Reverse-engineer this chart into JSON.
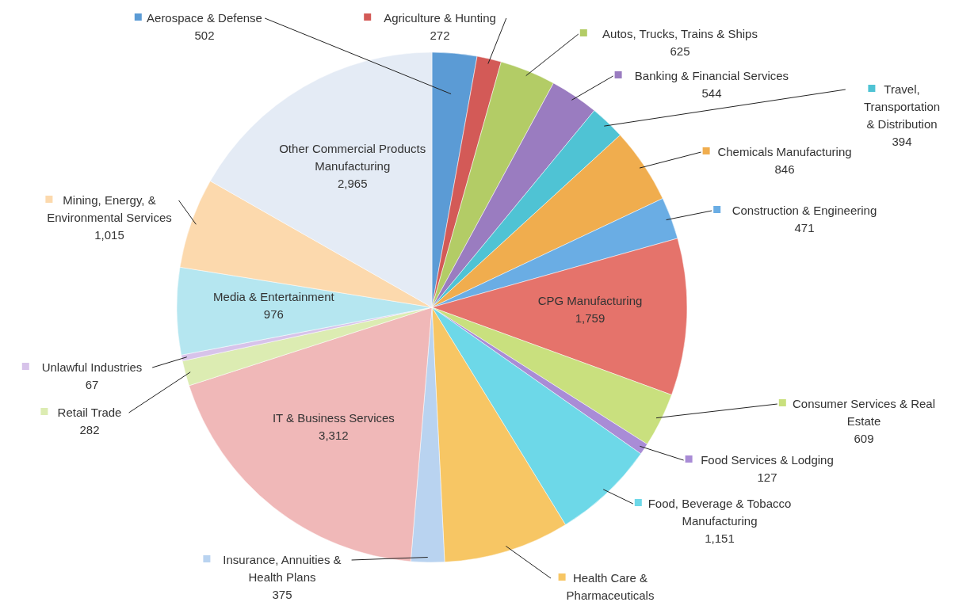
{
  "chart_data": {
    "type": "pie",
    "categories": [
      "Aerospace & Defense",
      "Agriculture & Hunting",
      "Autos, Trucks, Trains & Ships",
      "Banking & Financial Services",
      "Travel, Transportation & Distribution",
      "Chemicals Manufacturing",
      "Construction & Engineering",
      "CPG Manufacturing",
      "Consumer Services & Real Estate",
      "Food Services & Lodging",
      "Food, Beverage & Tobacco Manufacturing",
      "Health Care & Pharmaceuticals",
      "Insurance, Annuities & Health Plans",
      "IT & Business Services",
      "Retail Trade",
      "Unlawful Industries",
      "Media & Entertainment",
      "Mining, Energy, & Environmental Services",
      "Other Commercial Products Manufacturing"
    ],
    "values": [
      502,
      272,
      625,
      544,
      394,
      846,
      471,
      1759,
      609,
      127,
      1151,
      1411,
      375,
      3312,
      282,
      67,
      976,
      1015,
      2965
    ],
    "value_labels": [
      "502",
      "272",
      "625",
      "544",
      "394",
      "846",
      "471",
      "1,759",
      "609",
      "127",
      "1,151",
      null,
      "375",
      "3,312",
      "282",
      "67",
      "976",
      "1,015",
      "2,965"
    ],
    "colors": [
      "#5b9bd5",
      "#d35a57",
      "#b3cc66",
      "#9a7cc0",
      "#4fc3d4",
      "#f0ad4e",
      "#6aade4",
      "#e5736b",
      "#c9e07e",
      "#a98cd6",
      "#6dd8e8",
      "#f7c664",
      "#b9d3f0",
      "#f0b8b8",
      "#dcecb2",
      "#d7c3ea",
      "#b5e6f0",
      "#fcd9ad",
      "#e4ebf5"
    ],
    "legend": true
  }
}
